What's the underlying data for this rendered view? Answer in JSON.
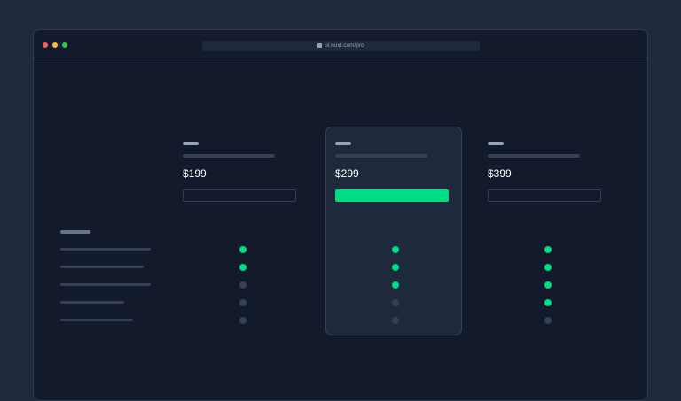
{
  "browser": {
    "url": "ui.nuxt.com/pro",
    "lock_icon": "lock-icon",
    "dots": [
      "#ff5f57",
      "#febc2e",
      "#28c840"
    ]
  },
  "colors": {
    "accent": "#00dc82",
    "off": "#334155"
  },
  "plans": [
    {
      "price": "$199",
      "highlighted": false,
      "features": [
        true,
        true,
        false,
        false,
        false
      ]
    },
    {
      "price": "$299",
      "highlighted": true,
      "features": [
        true,
        true,
        true,
        false,
        false
      ]
    },
    {
      "price": "$399",
      "highlighted": false,
      "features": [
        true,
        true,
        true,
        true,
        false
      ]
    }
  ],
  "feature_count": 5
}
